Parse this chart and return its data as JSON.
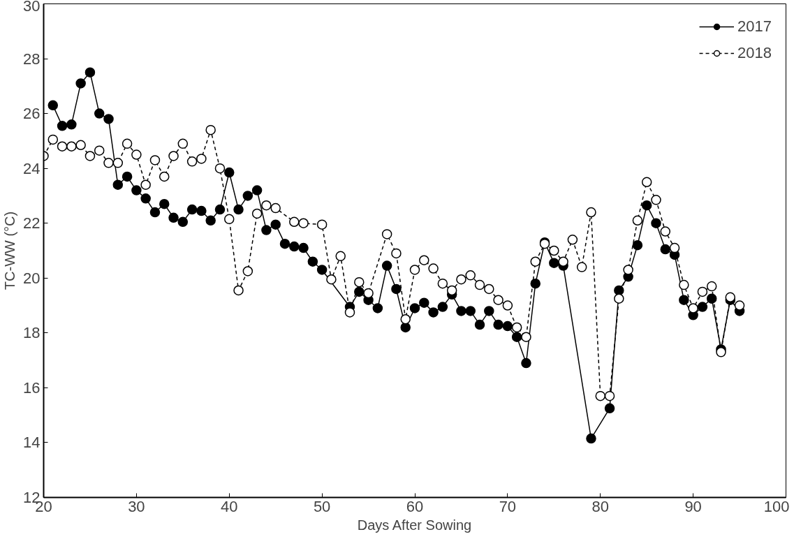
{
  "chart_data": {
    "type": "line",
    "xlabel": "Days After Sowing",
    "ylabel": "TC-WW (°C)",
    "xlim": [
      20,
      100
    ],
    "ylim": [
      12,
      30
    ],
    "xticks": [
      20,
      30,
      40,
      50,
      60,
      70,
      80,
      90,
      100
    ],
    "yticks": [
      12,
      14,
      16,
      18,
      20,
      22,
      24,
      26,
      28,
      30
    ],
    "grid": false,
    "legend": "top right",
    "marker": "circle",
    "series": [
      {
        "name": "2017",
        "color": "#000000",
        "line_style": "solid",
        "x": [
          21,
          22,
          23,
          24,
          25,
          26,
          27,
          28,
          29,
          30,
          31,
          32,
          33,
          34,
          35,
          36,
          37,
          38,
          39,
          40,
          41,
          42,
          43,
          44,
          45,
          46,
          47,
          48,
          49,
          50,
          53,
          54,
          55,
          56,
          57,
          58,
          59,
          60,
          61,
          62,
          63,
          64,
          65,
          66,
          67,
          68,
          69,
          70,
          71,
          72,
          73,
          74,
          75,
          76,
          79,
          81,
          82,
          83,
          84,
          85,
          86,
          87,
          88,
          89,
          90,
          91,
          92,
          93,
          94,
          95
        ],
        "values": [
          26.3,
          25.55,
          25.6,
          27.1,
          27.5,
          26.0,
          25.8,
          23.4,
          23.7,
          23.2,
          22.9,
          22.4,
          22.7,
          22.2,
          22.05,
          22.5,
          22.45,
          22.1,
          22.5,
          23.85,
          22.5,
          23.0,
          23.2,
          21.75,
          21.95,
          21.25,
          21.15,
          21.1,
          20.6,
          20.3,
          18.95,
          19.5,
          19.2,
          18.9,
          20.45,
          19.6,
          18.2,
          18.9,
          19.1,
          18.75,
          18.95,
          19.4,
          18.8,
          18.8,
          18.3,
          18.8,
          18.3,
          18.25,
          17.85,
          16.9,
          19.8,
          21.3,
          20.55,
          20.45,
          14.15,
          15.25,
          19.55,
          20.05,
          21.2,
          22.65,
          22.0,
          21.05,
          20.85,
          19.2,
          18.65,
          18.95,
          19.25,
          17.4,
          19.2,
          18.8
        ]
      },
      {
        "name": "2018",
        "color": "#000000",
        "line_style": "dashed",
        "x": [
          20,
          21,
          22,
          23,
          24,
          25,
          26,
          27,
          28,
          29,
          30,
          31,
          32,
          33,
          34,
          35,
          36,
          37,
          38,
          39,
          40,
          41,
          42,
          43,
          44,
          45,
          47,
          48,
          50,
          51,
          52,
          53,
          54,
          55,
          57,
          58,
          59,
          60,
          61,
          62,
          63,
          64,
          65,
          66,
          67,
          68,
          69,
          70,
          71,
          72,
          73,
          74,
          75,
          76,
          77,
          78,
          79,
          80,
          81,
          82,
          83,
          84,
          85,
          86,
          87,
          88,
          89,
          90,
          91,
          92,
          93,
          94,
          95
        ],
        "values": [
          24.45,
          25.05,
          24.8,
          24.8,
          24.85,
          24.45,
          24.65,
          24.2,
          24.2,
          24.9,
          24.5,
          23.4,
          24.3,
          23.7,
          24.45,
          24.9,
          24.25,
          24.35,
          25.4,
          24.0,
          22.15,
          19.55,
          20.25,
          22.35,
          22.65,
          22.55,
          22.05,
          22.0,
          21.95,
          19.95,
          20.8,
          18.75,
          19.85,
          19.45,
          21.6,
          20.9,
          18.5,
          20.3,
          20.65,
          20.35,
          19.8,
          19.55,
          19.95,
          20.1,
          19.75,
          19.6,
          19.2,
          19.0,
          18.2,
          17.85,
          20.6,
          21.25,
          21.0,
          20.6,
          21.4,
          20.4,
          22.4,
          15.7,
          15.7,
          19.25,
          20.3,
          22.1,
          23.5,
          22.85,
          21.7,
          21.1,
          19.75,
          18.9,
          19.5,
          19.7,
          17.3,
          19.3,
          19.0
        ]
      }
    ]
  }
}
